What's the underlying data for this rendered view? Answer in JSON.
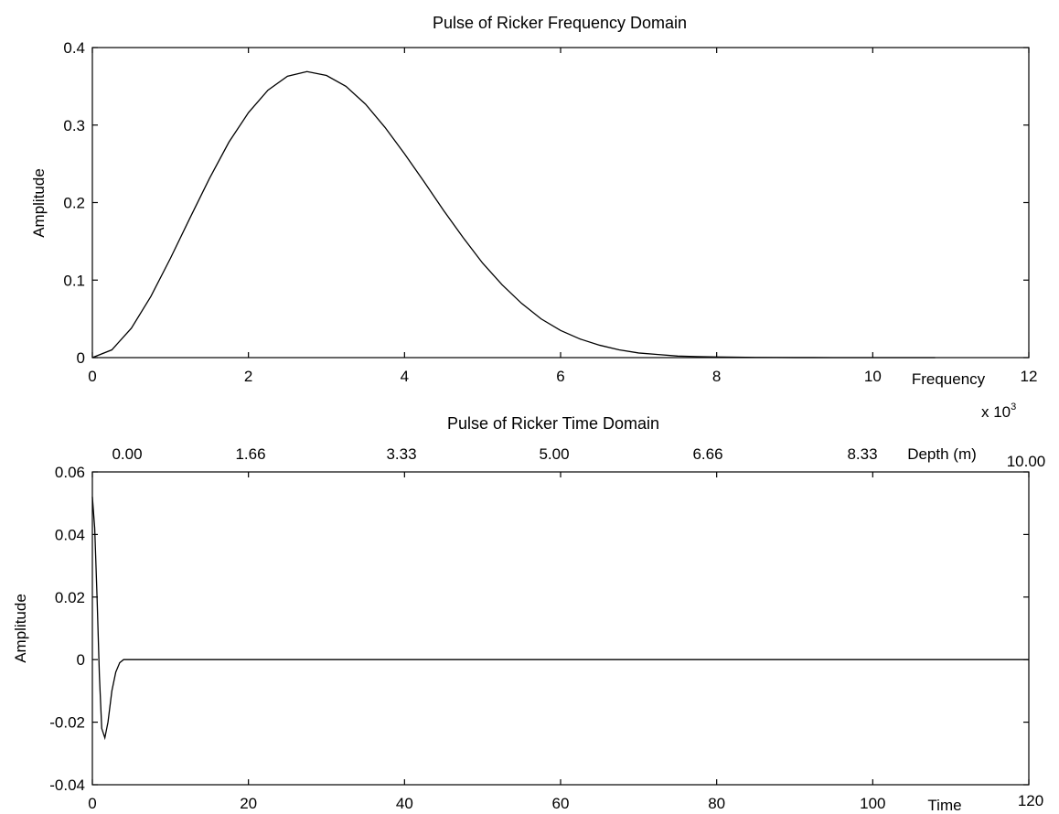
{
  "chart_data": [
    {
      "type": "line",
      "title": "Pulse of Ricker   Frequency Domain",
      "xlabel": "Frequency",
      "ylabel": "Amplitude",
      "x_multiplier_label": "x 10",
      "x_multiplier_exponent": "3",
      "xlim": [
        0,
        12
      ],
      "ylim": [
        0,
        0.4
      ],
      "xticks": [
        "0",
        "2",
        "4",
        "6",
        "8",
        "10",
        "12"
      ],
      "yticks": [
        "0",
        "0.1",
        "0.2",
        "0.3",
        "0.4"
      ],
      "grid": false,
      "series": [
        {
          "x": [
            0,
            0.25,
            0.5,
            0.75,
            1,
            1.25,
            1.5,
            1.75,
            2,
            2.25,
            2.5,
            2.75,
            3,
            3.25,
            3.5,
            3.75,
            4,
            4.25,
            4.5,
            4.75,
            5,
            5.25,
            5.5,
            5.75,
            6,
            6.25,
            6.5,
            6.75,
            7,
            7.25,
            7.5,
            7.75,
            8,
            8.5,
            9,
            9.5,
            10,
            10.5,
            10.8
          ],
          "values": [
            0,
            0.01,
            0.038,
            0.079,
            0.128,
            0.18,
            0.231,
            0.278,
            0.316,
            0.345,
            0.363,
            0.369,
            0.364,
            0.35,
            0.327,
            0.297,
            0.263,
            0.227,
            0.19,
            0.155,
            0.122,
            0.094,
            0.07,
            0.05,
            0.035,
            0.024,
            0.016,
            0.01,
            0.006,
            0.004,
            0.002,
            0.0013,
            0.0008,
            0.0003,
            0.0001,
            0,
            0,
            0,
            0
          ]
        }
      ]
    },
    {
      "type": "line",
      "title": "Pulse of Ricker    Time Domain",
      "xlabel": "Time",
      "ylabel": "Amplitude",
      "top_xlabel": "Depth (m)",
      "xlim": [
        0,
        120
      ],
      "ylim": [
        -0.04,
        0.06
      ],
      "xticks": [
        "0",
        "20",
        "40",
        "60",
        "80",
        "100",
        "120"
      ],
      "yticks": [
        "-0.04",
        "-0.02",
        "0",
        "0.02",
        "0.04",
        "0.06"
      ],
      "top_xticks": [
        "0.00",
        "1.66",
        "3.33",
        "5.00",
        "6.66",
        "8.33",
        "10.00"
      ],
      "grid": false,
      "series": [
        {
          "x": [
            0,
            0.3,
            0.6,
            0.9,
            1.2,
            1.6,
            2.0,
            2.5,
            3.0,
            3.5,
            4.0,
            5.0,
            10,
            20,
            40,
            60,
            80,
            100,
            120
          ],
          "values": [
            0.052,
            0.042,
            0.02,
            -0.005,
            -0.022,
            -0.025,
            -0.02,
            -0.01,
            -0.004,
            -0.001,
            0,
            0,
            0,
            0,
            0,
            0,
            0,
            0,
            0
          ]
        }
      ]
    }
  ]
}
